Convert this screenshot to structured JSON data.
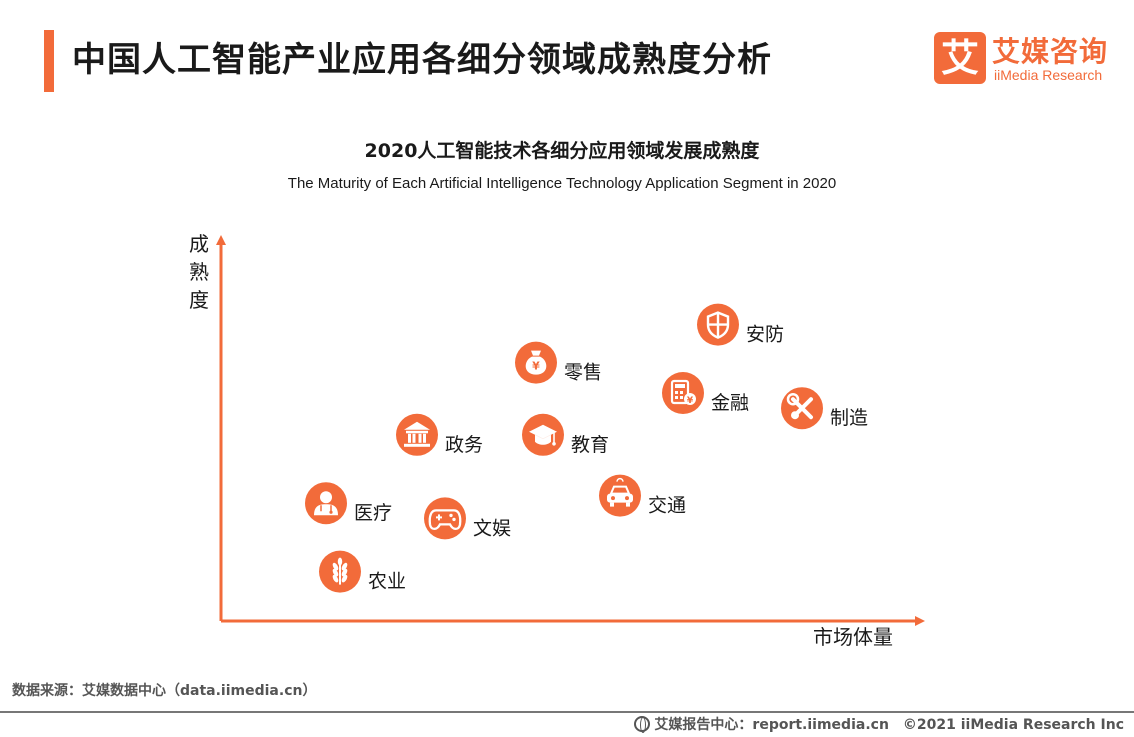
{
  "header": {
    "title": "中国人工智能产业应用各细分领域成熟度分析"
  },
  "logo": {
    "mark": "艾",
    "name_cn": "艾媒咨询",
    "name_en": "iiMedia Research"
  },
  "colors": {
    "accent": "#f26b3a",
    "axis": "#f26b3a"
  },
  "chart_data": {
    "type": "scatter",
    "title": "2020人工智能技术各细分应用领域发展成熟度",
    "subtitle": "The Maturity of Each Artificial Intelligence Technology Application Segment in 2020",
    "xlabel": "市场体量",
    "ylabel": "成熟度",
    "xlim": [
      0,
      100
    ],
    "ylim": [
      0,
      100
    ],
    "grid": false,
    "points": [
      {
        "label": "安防",
        "x": 71,
        "y": 78,
        "icon": "shield-icon"
      },
      {
        "label": "零售",
        "x": 45,
        "y": 68,
        "icon": "money-bag-icon"
      },
      {
        "label": "金融",
        "x": 66,
        "y": 60,
        "icon": "calculator-icon"
      },
      {
        "label": "制造",
        "x": 83,
        "y": 56,
        "icon": "wrench-icon"
      },
      {
        "label": "政务",
        "x": 28,
        "y": 49,
        "icon": "government-icon"
      },
      {
        "label": "教育",
        "x": 46,
        "y": 49,
        "icon": "graduation-cap-icon"
      },
      {
        "label": "交通",
        "x": 57,
        "y": 33,
        "icon": "car-icon"
      },
      {
        "label": "医疗",
        "x": 15,
        "y": 31,
        "icon": "doctor-icon"
      },
      {
        "label": "文娱",
        "x": 32,
        "y": 27,
        "icon": "gamepad-icon"
      },
      {
        "label": "农业",
        "x": 17,
        "y": 13,
        "icon": "wheat-icon"
      }
    ]
  },
  "source": "数据来源：艾媒数据中心（data.iimedia.cn）",
  "footer": {
    "report": "艾媒报告中心：report.iimedia.cn",
    "copyright": "©2021  iiMedia Research  Inc"
  }
}
